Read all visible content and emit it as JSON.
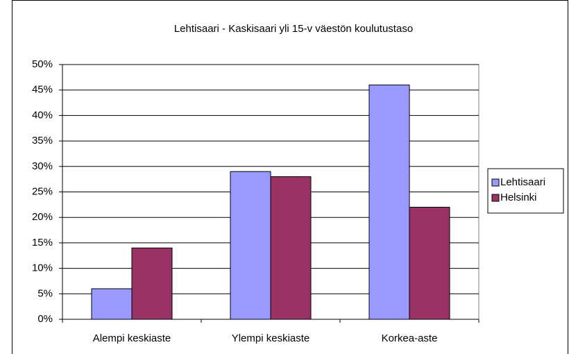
{
  "chart_data": {
    "type": "bar",
    "title": "Lehtisaari - Kaskisaari yli 15-v väestön koulutustaso",
    "categories": [
      "Alempi keskiaste",
      "Ylempi keskiaste",
      "Korkea-aste"
    ],
    "series": [
      {
        "name": "Lehtisaari",
        "color": "#9999ff",
        "values": [
          6,
          29,
          46
        ]
      },
      {
        "name": "Helsinki",
        "color": "#993366",
        "values": [
          14,
          28,
          22
        ]
      }
    ],
    "ylim": [
      0,
      50
    ],
    "yticks": [
      {
        "value": 0,
        "label": "0%"
      },
      {
        "value": 5,
        "label": "5%"
      },
      {
        "value": 10,
        "label": "10%"
      },
      {
        "value": 15,
        "label": "15%"
      },
      {
        "value": 20,
        "label": "20%"
      },
      {
        "value": 25,
        "label": "25%"
      },
      {
        "value": 30,
        "label": "30%"
      },
      {
        "value": 35,
        "label": "35%"
      },
      {
        "value": 40,
        "label": "40%"
      },
      {
        "value": 45,
        "label": "45%"
      },
      {
        "value": 50,
        "label": "50%"
      }
    ],
    "grid": true,
    "legend": "right"
  }
}
